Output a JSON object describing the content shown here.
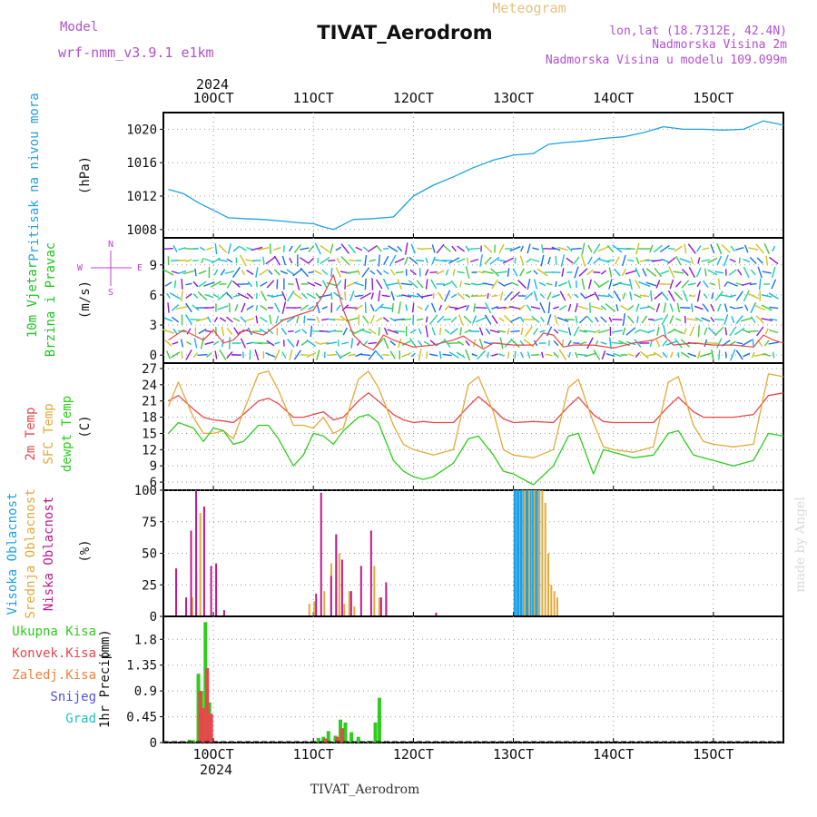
{
  "header": {
    "model_label": "Model",
    "model_name": "wrf-nmm_v3.9.1 e1km",
    "meteogram_label": "Meteogram",
    "station_title": "TIVAT_Aerodrom",
    "lonlat": "lon,lat (18.7312E, 42.4N)",
    "elevation": "Nadmorska Visina 2m",
    "model_elevation": "Nadmorska Visina u modelu 109.099m",
    "footer_station": "TIVAT_Aerodrom",
    "watermark": "made by Angel"
  },
  "time_axis": {
    "year": "2024",
    "ticks": [
      "10OCT",
      "11OCT",
      "12OCT",
      "13OCT",
      "14OCT",
      "15OCT"
    ],
    "day_start": 9.5,
    "day_end": 15.7
  },
  "colors": {
    "pressure": "#1fa2e0",
    "wind_label": "#1ec41e",
    "wind_compass": "#c040d0",
    "temp2m": "#e8464a",
    "sfc": "#e2aa3a",
    "dewpt": "#2ecc1e",
    "cloud_high": "#1aa0e6",
    "cloud_mid": "#e2aa3a",
    "cloud_low": "#c01890",
    "precip_total": "#2ecc1e",
    "precip_conv": "#e8464a",
    "precip_frozen": "#f0803a",
    "precip_snow": "#5050e0",
    "precip_hail": "#20c0c0",
    "watermark": "#d8d8d8",
    "header_purple": "#b050d0",
    "meteogram_gold": "#e8c080"
  },
  "chart_data": [
    {
      "name": "pressure",
      "type": "line",
      "ylabel_main": "Pritisak na nivou mora",
      "ylabel_unit": "(hPa)",
      "yticks": [
        "1008",
        "1012",
        "1016",
        "1020"
      ],
      "ylim": [
        1007,
        1022
      ],
      "series": [
        {
          "x": [
            9.55,
            9.7,
            9.85,
            10.0,
            10.15,
            10.3,
            10.5,
            10.7,
            10.85,
            11.0,
            11.1,
            11.2,
            11.3,
            11.4,
            11.6,
            11.8,
            12.0,
            12.2,
            12.4,
            12.6,
            12.8,
            13.0,
            13.2,
            13.35,
            13.5,
            13.7,
            13.9,
            14.1,
            14.3,
            14.5,
            14.7,
            14.9,
            15.1,
            15.3,
            15.5,
            15.7
          ],
          "y": [
            1012.8,
            1012.3,
            1011.2,
            1010.3,
            1009.4,
            1009.3,
            1009.2,
            1009.0,
            1008.8,
            1008.7,
            1008.3,
            1008.0,
            1008.6,
            1009.2,
            1009.3,
            1009.5,
            1012.0,
            1013.3,
            1014.3,
            1015.4,
            1016.3,
            1016.9,
            1017.1,
            1018.2,
            1018.4,
            1018.6,
            1018.9,
            1019.1,
            1019.6,
            1020.3,
            1020.0,
            1020.0,
            1019.9,
            1020.0,
            1021.0,
            1020.5
          ]
        }
      ]
    },
    {
      "name": "wind",
      "type": "line",
      "ylabel_main": "10m Vjetar",
      "ylabel_sub": "Brzina i Pravac",
      "ylabel_unit": "(m/s)",
      "compass": [
        "N",
        "W",
        "E",
        "S"
      ],
      "yticks": [
        "0",
        "3",
        "6",
        "9"
      ],
      "ylim": [
        -0.8,
        11.7
      ],
      "series": [
        {
          "name": "wind speed",
          "x": [
            9.55,
            9.7,
            9.8,
            9.9,
            10.0,
            10.1,
            10.2,
            10.3,
            10.5,
            10.7,
            10.85,
            11.0,
            11.1,
            11.2,
            11.3,
            11.4,
            11.5,
            11.6,
            11.7,
            11.8,
            12.0,
            12.2,
            12.4,
            12.5,
            12.6,
            12.7,
            12.8,
            13.0,
            13.2,
            13.3,
            13.4,
            13.5,
            13.6,
            13.8,
            14.0,
            14.2,
            14.4,
            14.5,
            14.6,
            14.8,
            15.0,
            15.2,
            15.4,
            15.5,
            15.6,
            15.7
          ],
          "y": [
            1.5,
            2.5,
            2.0,
            1.5,
            2.5,
            1.2,
            1.5,
            2.5,
            2.0,
            3.5,
            4.0,
            4.5,
            6.0,
            8.0,
            4.5,
            2.0,
            1.0,
            0.5,
            2.0,
            1.5,
            0.8,
            1.0,
            1.5,
            1.9,
            1.2,
            0.6,
            1.2,
            1.0,
            1.0,
            2.2,
            2.0,
            0.8,
            1.0,
            1.0,
            0.7,
            1.2,
            1.5,
            2.0,
            1.0,
            1.2,
            1.0,
            1.0,
            0.8,
            2.0,
            1.5,
            1.2
          ]
        }
      ]
    },
    {
      "name": "temperature",
      "type": "line",
      "ylabel_lines": [
        "2m Temp",
        "SFC Temp",
        "dewpt Temp"
      ],
      "ylabel_unit": "(C)",
      "yticks": [
        "6",
        "9",
        "12",
        "15",
        "18",
        "21",
        "24",
        "27"
      ],
      "ylim": [
        4.5,
        28
      ],
      "series": [
        {
          "name": "2m Temp",
          "x": [
            9.55,
            9.65,
            9.8,
            9.9,
            10.0,
            10.1,
            10.2,
            10.3,
            10.45,
            10.55,
            10.65,
            10.8,
            10.9,
            11.0,
            11.1,
            11.2,
            11.3,
            11.45,
            11.55,
            11.65,
            11.8,
            11.9,
            12.0,
            12.1,
            12.2,
            12.4,
            12.55,
            12.65,
            12.8,
            12.9,
            13.0,
            13.2,
            13.4,
            13.55,
            13.65,
            13.8,
            13.9,
            14.0,
            14.2,
            14.4,
            14.55,
            14.65,
            14.8,
            14.9,
            15.0,
            15.2,
            15.4,
            15.55,
            15.7
          ],
          "y": [
            21.0,
            22.0,
            19.5,
            18.0,
            17.5,
            17.3,
            17.0,
            18.5,
            21.0,
            21.5,
            20.5,
            18.0,
            18.0,
            18.5,
            19.0,
            17.5,
            18.0,
            21.0,
            22.5,
            21.0,
            18.5,
            17.5,
            17.0,
            17.2,
            17.0,
            17.0,
            20.0,
            21.8,
            19.5,
            17.7,
            17.0,
            17.2,
            17.0,
            20.0,
            21.7,
            18.5,
            17.2,
            17.0,
            17.0,
            17.0,
            20.0,
            21.7,
            19.0,
            18.0,
            18.0,
            18.0,
            18.5,
            22.0,
            22.5
          ]
        },
        {
          "name": "SFC Temp",
          "x": [
            9.55,
            9.65,
            9.8,
            9.9,
            10.0,
            10.1,
            10.2,
            10.3,
            10.45,
            10.55,
            10.65,
            10.8,
            10.9,
            11.0,
            11.1,
            11.2,
            11.3,
            11.45,
            11.55,
            11.65,
            11.8,
            11.9,
            12.0,
            12.1,
            12.2,
            12.4,
            12.55,
            12.65,
            12.8,
            12.9,
            13.0,
            13.2,
            13.4,
            13.55,
            13.65,
            13.8,
            13.9,
            14.0,
            14.2,
            14.4,
            14.55,
            14.65,
            14.8,
            14.9,
            15.0,
            15.2,
            15.4,
            15.55,
            15.7
          ],
          "y": [
            20.0,
            24.5,
            18.0,
            15.0,
            15.0,
            15.5,
            14.0,
            19.0,
            26.0,
            26.5,
            23.0,
            16.5,
            16.5,
            16.0,
            18.0,
            15.0,
            16.0,
            25.0,
            26.5,
            23.5,
            16.5,
            13.0,
            12.0,
            11.5,
            11.0,
            12.0,
            24.0,
            25.5,
            19.0,
            12.0,
            11.0,
            10.5,
            12.0,
            23.5,
            25.0,
            17.0,
            12.5,
            12.0,
            11.5,
            12.5,
            24.5,
            25.5,
            16.5,
            13.5,
            13.0,
            12.5,
            13.0,
            26.0,
            25.5
          ]
        },
        {
          "name": "dewpt Temp",
          "x": [
            9.55,
            9.65,
            9.8,
            9.9,
            10.0,
            10.1,
            10.2,
            10.3,
            10.45,
            10.55,
            10.65,
            10.8,
            10.9,
            11.0,
            11.1,
            11.2,
            11.3,
            11.45,
            11.55,
            11.65,
            11.8,
            11.9,
            12.0,
            12.1,
            12.2,
            12.4,
            12.55,
            12.65,
            12.8,
            12.9,
            13.0,
            13.2,
            13.4,
            13.55,
            13.65,
            13.8,
            13.9,
            14.0,
            14.2,
            14.4,
            14.55,
            14.65,
            14.8,
            14.9,
            15.0,
            15.2,
            15.4,
            15.55,
            15.7
          ],
          "y": [
            15.0,
            17.0,
            16.0,
            13.5,
            16.0,
            15.5,
            13.0,
            13.5,
            16.5,
            16.5,
            14.0,
            9.0,
            11.0,
            15.0,
            14.5,
            13.0,
            15.5,
            18.0,
            18.5,
            17.0,
            10.0,
            8.0,
            7.0,
            6.5,
            7.0,
            9.5,
            14.0,
            14.5,
            11.0,
            8.0,
            7.5,
            5.5,
            9.0,
            14.5,
            15.0,
            7.5,
            12.0,
            11.5,
            10.5,
            11.0,
            15.0,
            15.5,
            11.0,
            10.5,
            10.0,
            9.0,
            10.0,
            15.0,
            14.5
          ]
        }
      ]
    },
    {
      "name": "cloud",
      "type": "bar",
      "ylabel_lines": [
        "Visoka Oblacnost",
        "Srednja Oblacnost",
        "Niska Oblacnost"
      ],
      "ylabel_unit": "(%)",
      "yticks": [
        "0",
        "25",
        "50",
        "75",
        "100"
      ],
      "ylim": [
        0,
        100
      ],
      "series": [
        {
          "name": "Visoka Oblacnost",
          "x": [
            13.02,
            13.05,
            13.08,
            13.11,
            13.14,
            13.17,
            13.2,
            13.23,
            13.26
          ],
          "y": [
            100,
            100,
            100,
            100,
            100,
            100,
            100,
            100,
            100
          ]
        },
        {
          "name": "Srednja Oblacnost",
          "x": [
            9.78,
            9.82,
            9.86,
            9.9,
            10.95,
            11.0,
            11.1,
            11.17,
            11.22,
            11.25,
            11.3,
            11.35,
            11.4,
            11.6,
            11.65,
            11.72,
            13.1,
            13.15,
            13.2,
            13.25,
            13.28,
            13.31,
            13.34,
            13.37,
            13.4,
            13.43
          ],
          "y": [
            15,
            35,
            82,
            87,
            10,
            12,
            20,
            42,
            65,
            50,
            10,
            20,
            8,
            40,
            15,
            18,
            100,
            100,
            100,
            100,
            100,
            90,
            50,
            25,
            20,
            15
          ]
        },
        {
          "name": "Niska Oblacnost",
          "x": [
            9.6,
            9.7,
            9.75,
            9.8,
            9.88,
            9.95,
            10.0,
            10.08,
            11.0,
            11.05,
            11.15,
            11.2,
            11.26,
            11.35,
            11.45,
            11.55,
            11.65,
            11.7,
            12.2
          ],
          "y": [
            38,
            15,
            68,
            100,
            87,
            40,
            42,
            5,
            18,
            98,
            32,
            65,
            45,
            20,
            40,
            68,
            15,
            27,
            3
          ]
        }
      ]
    },
    {
      "name": "precip",
      "type": "bar",
      "ylabel_main": "1hr Precip",
      "ylabel_unit": "(mm)",
      "legend": [
        "Ukupna Kisa",
        "Konvek.Kisa",
        "Zaledj.Kisa",
        "Snijeg",
        "Grad"
      ],
      "yticks": [
        "0",
        "0.45",
        "0.9",
        "1.35",
        "1.8"
      ],
      "ylim": [
        0,
        2.2
      ],
      "series": [
        {
          "name": "Ukupna Kisa",
          "x": [
            9.76,
            9.8,
            9.85,
            9.88,
            9.92,
            9.96,
            11.05,
            11.1,
            11.15,
            11.22,
            11.27,
            11.32,
            11.38,
            11.45,
            11.55,
            11.62,
            11.66
          ],
          "y": [
            0.05,
            0.04,
            1.2,
            0.9,
            2.1,
            0.7,
            0.08,
            0.1,
            0.2,
            0.12,
            0.4,
            0.35,
            0.18,
            0.1,
            0.03,
            0.35,
            0.78
          ]
        },
        {
          "name": "Konvek.Kisa",
          "x": [
            9.85,
            9.88,
            9.92,
            9.96,
            11.1,
            11.22,
            11.27
          ],
          "y": [
            0.9,
            0.6,
            1.3,
            0.5,
            0.07,
            0.1,
            0.25
          ]
        }
      ]
    }
  ]
}
